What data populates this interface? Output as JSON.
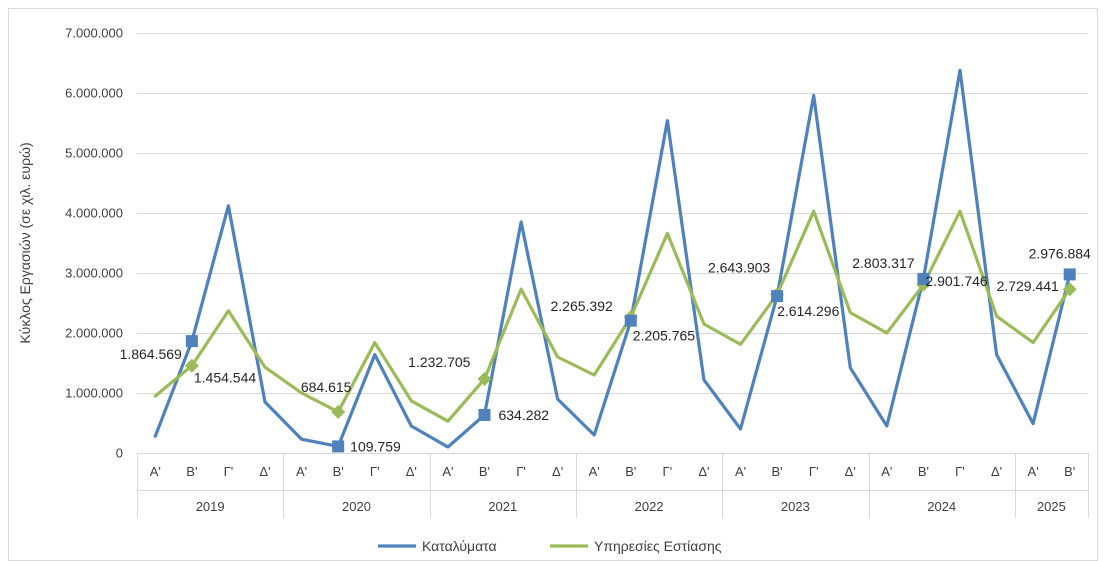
{
  "chart_data": {
    "type": "line",
    "ylabel": "Κύκλος Εργασιών (σε χιλ. ευρώ)",
    "ylim": [
      0,
      7000000
    ],
    "y_ticks": [
      {
        "value": 0,
        "label": "0"
      },
      {
        "value": 1000000,
        "label": "1.000.000"
      },
      {
        "value": 2000000,
        "label": "2.000.000"
      },
      {
        "value": 3000000,
        "label": "3.000.000"
      },
      {
        "value": 4000000,
        "label": "4.000.000"
      },
      {
        "value": 5000000,
        "label": "5.000.000"
      },
      {
        "value": 6000000,
        "label": "6.000.000"
      },
      {
        "value": 7000000,
        "label": "7.000.000"
      }
    ],
    "categories": [
      "Α'",
      "Β'",
      "Γ'",
      "Δ'",
      "Α'",
      "Β'",
      "Γ'",
      "Δ'",
      "Α'",
      "Β'",
      "Γ'",
      "Δ'",
      "Α'",
      "Β'",
      "Γ'",
      "Δ'",
      "Α'",
      "Β'",
      "Γ'",
      "Δ'",
      "Α'",
      "Β'",
      "Γ'",
      "Δ'",
      "Α'",
      "Β'"
    ],
    "years": [
      {
        "label": "2019",
        "count": 4
      },
      {
        "label": "2020",
        "count": 4
      },
      {
        "label": "2021",
        "count": 4
      },
      {
        "label": "2022",
        "count": 4
      },
      {
        "label": "2023",
        "count": 4
      },
      {
        "label": "2024",
        "count": 4
      },
      {
        "label": "2025",
        "count": 2
      }
    ],
    "series": [
      {
        "name": "Καταλύματα",
        "color": "#4f81bd",
        "marker": "square",
        "values": [
          280000,
          1864569,
          4120000,
          850000,
          230000,
          109759,
          1640000,
          450000,
          100000,
          634282,
          3850000,
          900000,
          300000,
          2205765,
          5540000,
          1220000,
          400000,
          2614296,
          5960000,
          1420000,
          450000,
          2901746,
          6380000,
          1640000,
          490000,
          2976884
        ]
      },
      {
        "name": "Υπηρεσίες Εστίασης",
        "color": "#9bbb59",
        "marker": "diamond",
        "values": [
          950000,
          1454544,
          2370000,
          1430000,
          1000000,
          684615,
          1840000,
          870000,
          530000,
          1232705,
          2730000,
          1600000,
          1300000,
          2265392,
          3660000,
          2150000,
          1810000,
          2643903,
          4030000,
          2340000,
          2000000,
          2803317,
          4030000,
          2280000,
          1840000,
          2729441
        ]
      }
    ],
    "data_labels": [
      {
        "series": 0,
        "index": 1,
        "text": "1.864.569"
      },
      {
        "series": 1,
        "index": 1,
        "text": "1.454.544"
      },
      {
        "series": 1,
        "index": 5,
        "text": "684.615"
      },
      {
        "series": 0,
        "index": 5,
        "text": "109.759"
      },
      {
        "series": 1,
        "index": 9,
        "text": "1.232.705"
      },
      {
        "series": 0,
        "index": 9,
        "text": "634.282"
      },
      {
        "series": 1,
        "index": 13,
        "text": "2.265.392"
      },
      {
        "series": 0,
        "index": 13,
        "text": "2.205.765"
      },
      {
        "series": 1,
        "index": 17,
        "text": "2.643.903"
      },
      {
        "series": 0,
        "index": 17,
        "text": "2.614.296"
      },
      {
        "series": 1,
        "index": 21,
        "text": "2.803.317"
      },
      {
        "series": 0,
        "index": 21,
        "text": "2.901.746"
      },
      {
        "series": 1,
        "index": 25,
        "text": "2.729.441"
      },
      {
        "series": 0,
        "index": 25,
        "text": "2.976.884"
      }
    ],
    "legend_position": "bottom",
    "grid": true
  }
}
